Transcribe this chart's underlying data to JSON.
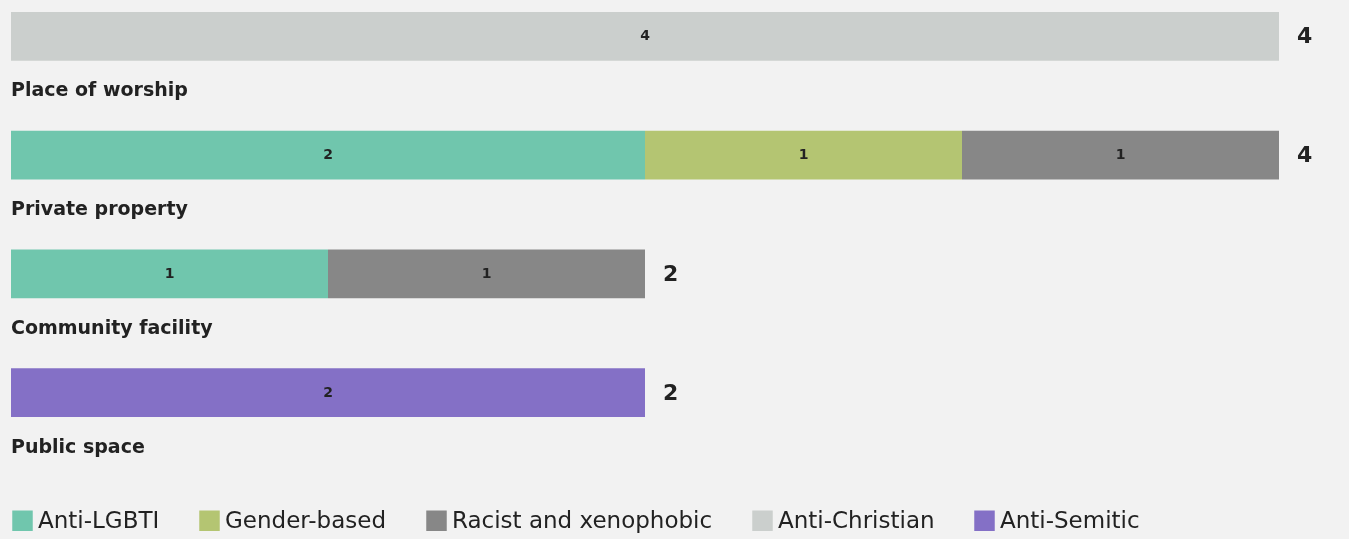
{
  "chart_data": {
    "type": "bar",
    "orientation": "horizontal",
    "stacked": true,
    "categories": [
      "Place of worship",
      "Private property",
      "Community facility",
      "Public space"
    ],
    "series": [
      {
        "name": "Anti-LGBTI",
        "color": "#70c6ad",
        "values": [
          null,
          2,
          1,
          null
        ]
      },
      {
        "name": "Gender-based",
        "color": "#b4c572",
        "values": [
          null,
          1,
          null,
          null
        ]
      },
      {
        "name": "Racist and xenophobic",
        "color": "#878787",
        "values": [
          null,
          1,
          1,
          null
        ]
      },
      {
        "name": "Anti-Christian",
        "color": "#cbcfcd",
        "values": [
          4,
          null,
          null,
          null
        ]
      },
      {
        "name": "Anti-Semitic",
        "color": "#8470c6",
        "values": [
          null,
          null,
          null,
          2
        ]
      }
    ],
    "xlim": [
      0,
      4
    ],
    "tick_labels": false,
    "data_labels": true,
    "totals": [
      "4",
      "4",
      "2",
      "2"
    ],
    "legend": "bottom"
  }
}
